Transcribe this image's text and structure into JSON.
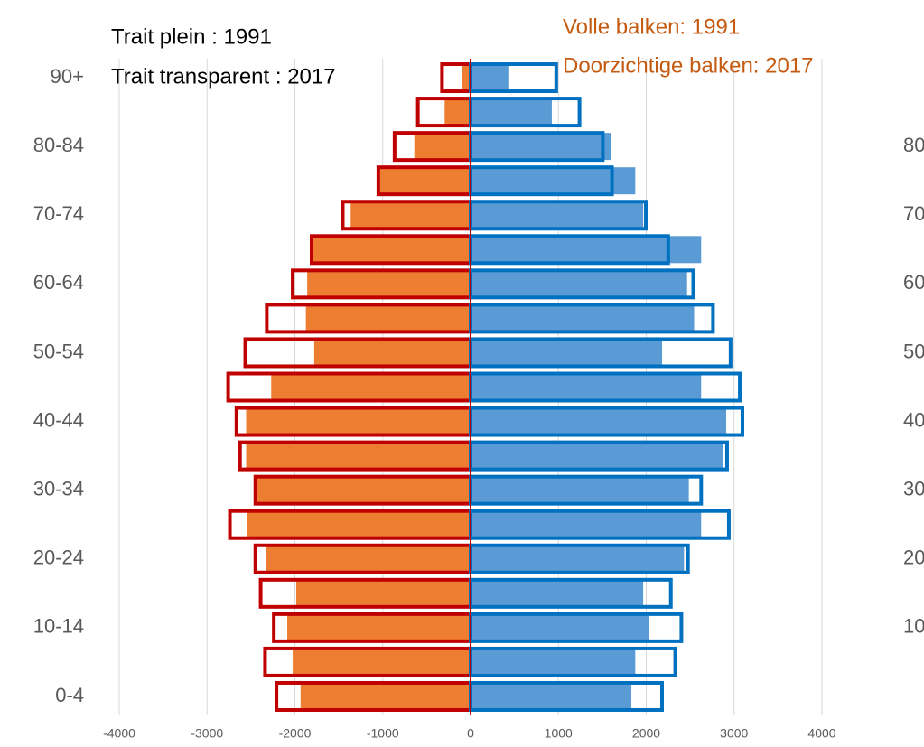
{
  "chart_data": {
    "type": "pyramid",
    "annotations": [
      "Trait plein : 1991",
      "Trait transparent : 2017",
      "Volle balken: 1991",
      "Doorzichtige balken: 2017"
    ],
    "categories": [
      "0-4",
      null,
      "10-14",
      null,
      "20-24",
      null,
      "30-34",
      null,
      "40-44",
      null,
      "50-54",
      null,
      "60-64",
      null,
      "70-74",
      null,
      "80-84",
      null,
      "90+"
    ],
    "series": [
      {
        "style": "filled",
        "color": "#ed7d31",
        "values": [
          -1935,
          -2025,
          -2087,
          -1985,
          -2330,
          -2545,
          -2430,
          -2555,
          -2555,
          -2270,
          -1780,
          -1875,
          -1860,
          -1800,
          -1365,
          -1030,
          -640,
          -295,
          -100
        ]
      },
      {
        "style": "outline",
        "color": "#c00000",
        "values": [
          -2210,
          -2340,
          -2240,
          -2390,
          -2450,
          -2740,
          -2450,
          -2625,
          -2665,
          -2760,
          -2565,
          -2320,
          -2025,
          -1810,
          -1455,
          -1050,
          -865,
          -600,
          -325
        ]
      },
      {
        "style": "filled",
        "color": "#5b9bd5",
        "values": [
          1830,
          1875,
          2035,
          1965,
          2430,
          2625,
          2485,
          2870,
          2910,
          2625,
          2180,
          2545,
          2465,
          2625,
          1965,
          1875,
          1600,
          925,
          430
        ]
      },
      {
        "style": "outline",
        "color": "#0070c0",
        "values": [
          2180,
          2330,
          2400,
          2280,
          2475,
          2940,
          2625,
          2920,
          3095,
          3065,
          2960,
          2760,
          2535,
          2250,
          1995,
          1610,
          1505,
          1240,
          975
        ]
      }
    ],
    "xlim": [
      -4000,
      4000
    ],
    "xticks": [
      -4000,
      -3000,
      -2000,
      -1000,
      0,
      1000,
      2000,
      3000,
      4000
    ],
    "grid": true
  }
}
